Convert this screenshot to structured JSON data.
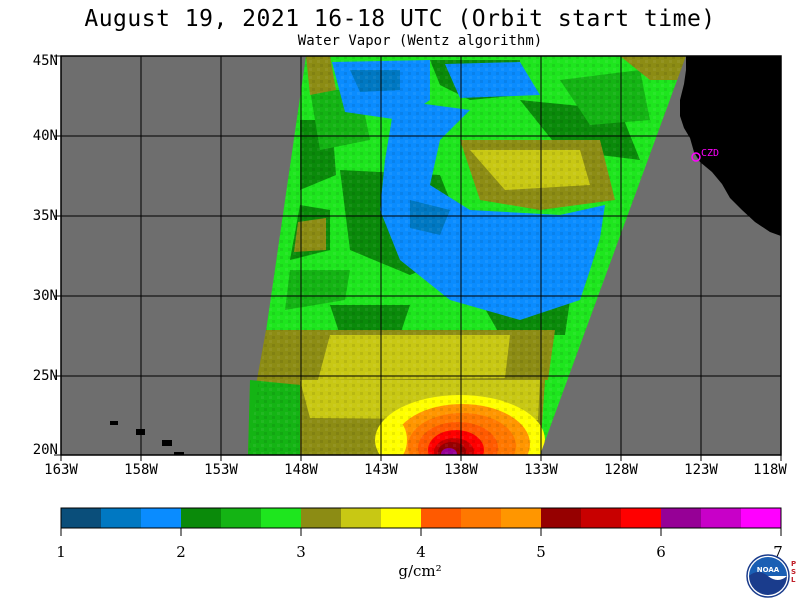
{
  "title": "August 19, 2021  16-18 UTC  (Orbit start time)",
  "subtitle": "Water Vapor (Wentz algorithm)",
  "latitude_labels": [
    "45N",
    "40N",
    "35N",
    "30N",
    "25N",
    "20N"
  ],
  "longitude_labels": [
    "163W",
    "158W",
    "153W",
    "148W",
    "143W",
    "138W",
    "133W",
    "128W",
    "123W",
    "118W"
  ],
  "colorbar": {
    "tick_labels": [
      "1",
      "2",
      "3",
      "4",
      "5",
      "6",
      "7"
    ],
    "units": "g/cm²",
    "colors": [
      "#0a4e7a",
      "#0078c2",
      "#0a8cff",
      "#0a8a0a",
      "#14b414",
      "#1ee61e",
      "#8c8c14",
      "#c8c814",
      "#ffff00",
      "#ff5a00",
      "#ff7800",
      "#ff9600",
      "#960000",
      "#c80000",
      "#ff0000",
      "#960096",
      "#c800c8",
      "#ff00ff"
    ]
  },
  "station": {
    "label": "CZD"
  },
  "logo": {
    "name": "NOAA",
    "side_text": "PSL"
  },
  "map": {
    "lat_range": [
      20,
      45
    ],
    "lon_range": [
      -163,
      -118
    ],
    "land_color": "#000000",
    "no_data_color": "#6e6e6e"
  }
}
